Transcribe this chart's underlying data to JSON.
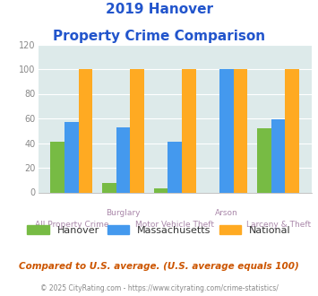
{
  "title_line1": "2019 Hanover",
  "title_line2": "Property Crime Comparison",
  "categories": [
    "All Property Crime",
    "Burglary",
    "Motor Vehicle Theft",
    "Arson",
    "Larceny & Theft"
  ],
  "hanover": [
    41,
    8,
    3,
    0,
    52
  ],
  "massachusetts": [
    57,
    53,
    41,
    100,
    59
  ],
  "national": [
    100,
    100,
    100,
    100,
    100
  ],
  "color_hanover": "#77bb44",
  "color_massachusetts": "#4499ee",
  "color_national": "#ffaa22",
  "color_title": "#2255cc",
  "color_xlabel": "#aa88aa",
  "color_note": "#cc5500",
  "color_footer_text": "#888888",
  "color_footer_link": "#4499ee",
  "color_bg_chart": "#ddeaea",
  "color_bg_fig": "#ffffff",
  "color_grid": "#ffffff",
  "color_ytick": "#888888",
  "ylim": [
    0,
    120
  ],
  "yticks": [
    0,
    20,
    40,
    60,
    80,
    100,
    120
  ],
  "note_text": "Compared to U.S. average. (U.S. average equals 100)",
  "footer_text1": "© 2025 CityRating.com - ",
  "footer_text2": "https://www.cityrating.com/crime-statistics/",
  "legend_labels": [
    "Hanover",
    "Massachusetts",
    "National"
  ],
  "top_row_labels": {
    "1": "Burglary",
    "3": "Arson"
  },
  "bottom_row_labels": {
    "0": "All Property Crime",
    "2": "Motor Vehicle Theft",
    "4": "Larceny & Theft"
  }
}
